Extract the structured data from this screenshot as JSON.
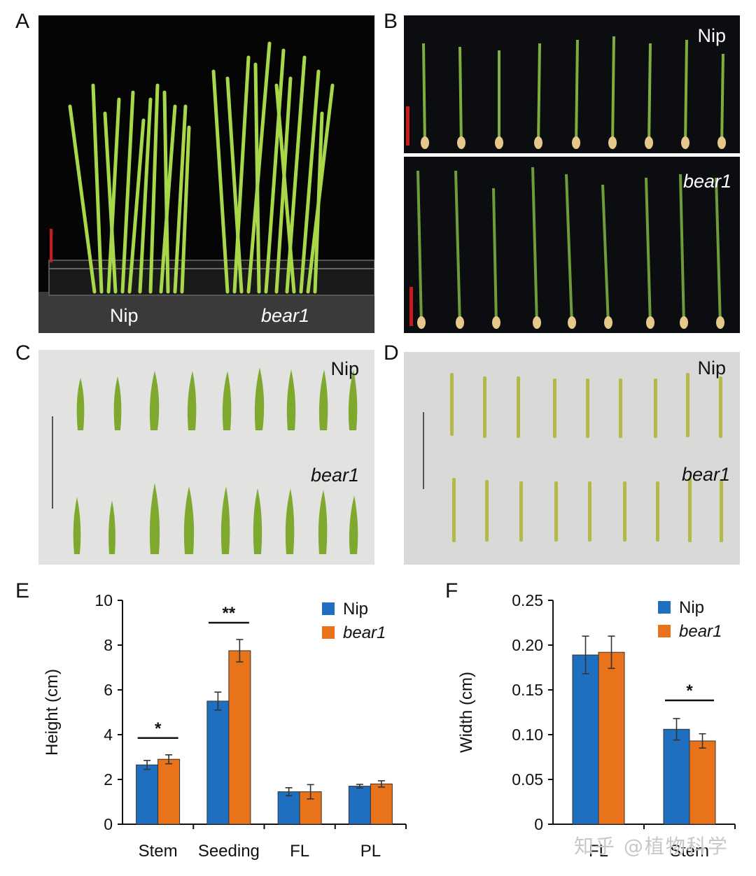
{
  "panels": {
    "A": {
      "letter": "A",
      "labels": [
        "Nip",
        "bear1"
      ]
    },
    "B": {
      "letter": "B",
      "labels": [
        "Nip",
        "bear1"
      ]
    },
    "C": {
      "letter": "C",
      "labels": [
        "Nip",
        "bear1"
      ]
    },
    "D": {
      "letter": "D",
      "labels": [
        "Nip",
        "bear1"
      ]
    },
    "E": {
      "letter": "E"
    },
    "F": {
      "letter": "F"
    }
  },
  "colors": {
    "nip": "#1f6fc0",
    "bear1": "#e8731a",
    "scale_red": "#cc1a1a"
  },
  "watermark": "知乎 @植物科学",
  "chart_data": [
    {
      "type": "bar",
      "panel": "E",
      "ylabel": "Height (cm)",
      "xlabel": "",
      "ylim": [
        0,
        10
      ],
      "yticks": [
        "0",
        "2",
        "4",
        "6",
        "8",
        "10"
      ],
      "categories": [
        "Stem",
        "Seeding",
        "FL",
        "PL"
      ],
      "series": [
        {
          "name": "Nip",
          "values": [
            2.65,
            5.5,
            1.45,
            1.7
          ],
          "errors": [
            0.2,
            0.4,
            0.18,
            0.08
          ]
        },
        {
          "name": "bear1",
          "values": [
            2.9,
            7.75,
            1.45,
            1.8
          ],
          "errors": [
            0.2,
            0.5,
            0.32,
            0.14
          ]
        }
      ],
      "significance": [
        {
          "category": "Stem",
          "label": "*"
        },
        {
          "category": "Seeding",
          "label": "**"
        }
      ],
      "legend": "top-right"
    },
    {
      "type": "bar",
      "panel": "F",
      "ylabel": "Width (cm)",
      "xlabel": "",
      "ylim": [
        0,
        0.25
      ],
      "yticks": [
        "0",
        "0.05",
        "0.10",
        "0.15",
        "0.20",
        "0.25"
      ],
      "categories": [
        "FL",
        "Stem"
      ],
      "series": [
        {
          "name": "Nip",
          "values": [
            0.189,
            0.106
          ],
          "errors": [
            0.021,
            0.012
          ]
        },
        {
          "name": "bear1",
          "values": [
            0.192,
            0.093
          ],
          "errors": [
            0.018,
            0.008
          ]
        }
      ],
      "significance": [
        {
          "category": "Stem",
          "label": "*"
        }
      ],
      "legend": "top-right"
    }
  ]
}
